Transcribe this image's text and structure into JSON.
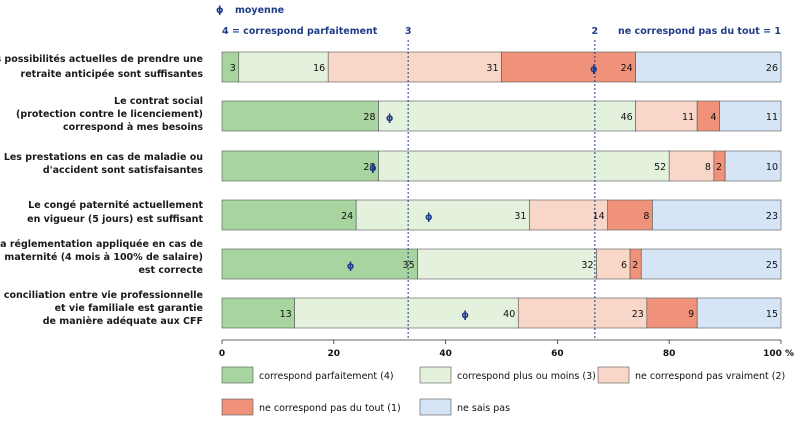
{
  "chart_data": {
    "type": "bar",
    "orientation": "horizontal",
    "stacked": true,
    "categories": [
      [
        "Les possibilités actuelles de prendre une",
        "retraite anticipée sont suffisantes"
      ],
      [
        "Le contrat social",
        "(protection contre le licenciement)",
        "correspond à mes besoins"
      ],
      [
        "Les prestations en cas de maladie ou",
        "d'accident sont satisfaisantes"
      ],
      [
        "Le congé paternité actuellement",
        "en vigueur (5 jours) est suffisant"
      ],
      [
        "La réglementation appliquée en cas de",
        "maternité (4 mois à 100% de salaire)",
        "est correcte"
      ],
      [
        "La conciliation entre vie professionnelle",
        "et vie familiale est garantie",
        "de manière adéquate aux CFF"
      ]
    ],
    "series": [
      {
        "name": "correspond parfaitement (4)",
        "color": "#a8d4a0",
        "values": [
          3,
          28,
          28,
          24,
          35,
          13
        ]
      },
      {
        "name": "correspond plus ou moins (3)",
        "color": "#e4f1dc",
        "values": [
          16,
          46,
          52,
          31,
          32,
          40
        ]
      },
      {
        "name": "ne correspond pas vraiment (2)",
        "color": "#f8d6c8",
        "values": [
          31,
          11,
          8,
          14,
          6,
          23
        ]
      },
      {
        "name": "ne correspond pas du tout (1)",
        "color": "#f0927a",
        "values": [
          24,
          4,
          2,
          8,
          2,
          9
        ]
      },
      {
        "name": "ne sais pas",
        "color": "#d5e5f5",
        "values": [
          26,
          11,
          10,
          23,
          25,
          15
        ]
      }
    ],
    "mean_positions": [
      66.5,
      30,
      27,
      37,
      23,
      43.5
    ],
    "mean_legend": "moyenne",
    "reference_lines": [
      {
        "label": "3",
        "x": 33.3
      },
      {
        "label": "2",
        "x": 66.7
      }
    ],
    "scale_labels": {
      "left": "4 = correspond parfaitement",
      "right": "ne correspond pas du tout = 1"
    },
    "xlim": [
      0,
      100
    ],
    "xticks": [
      "0",
      "20",
      "40",
      "60",
      "80",
      "100 %"
    ],
    "legend_position": "bottom",
    "grid": false
  }
}
